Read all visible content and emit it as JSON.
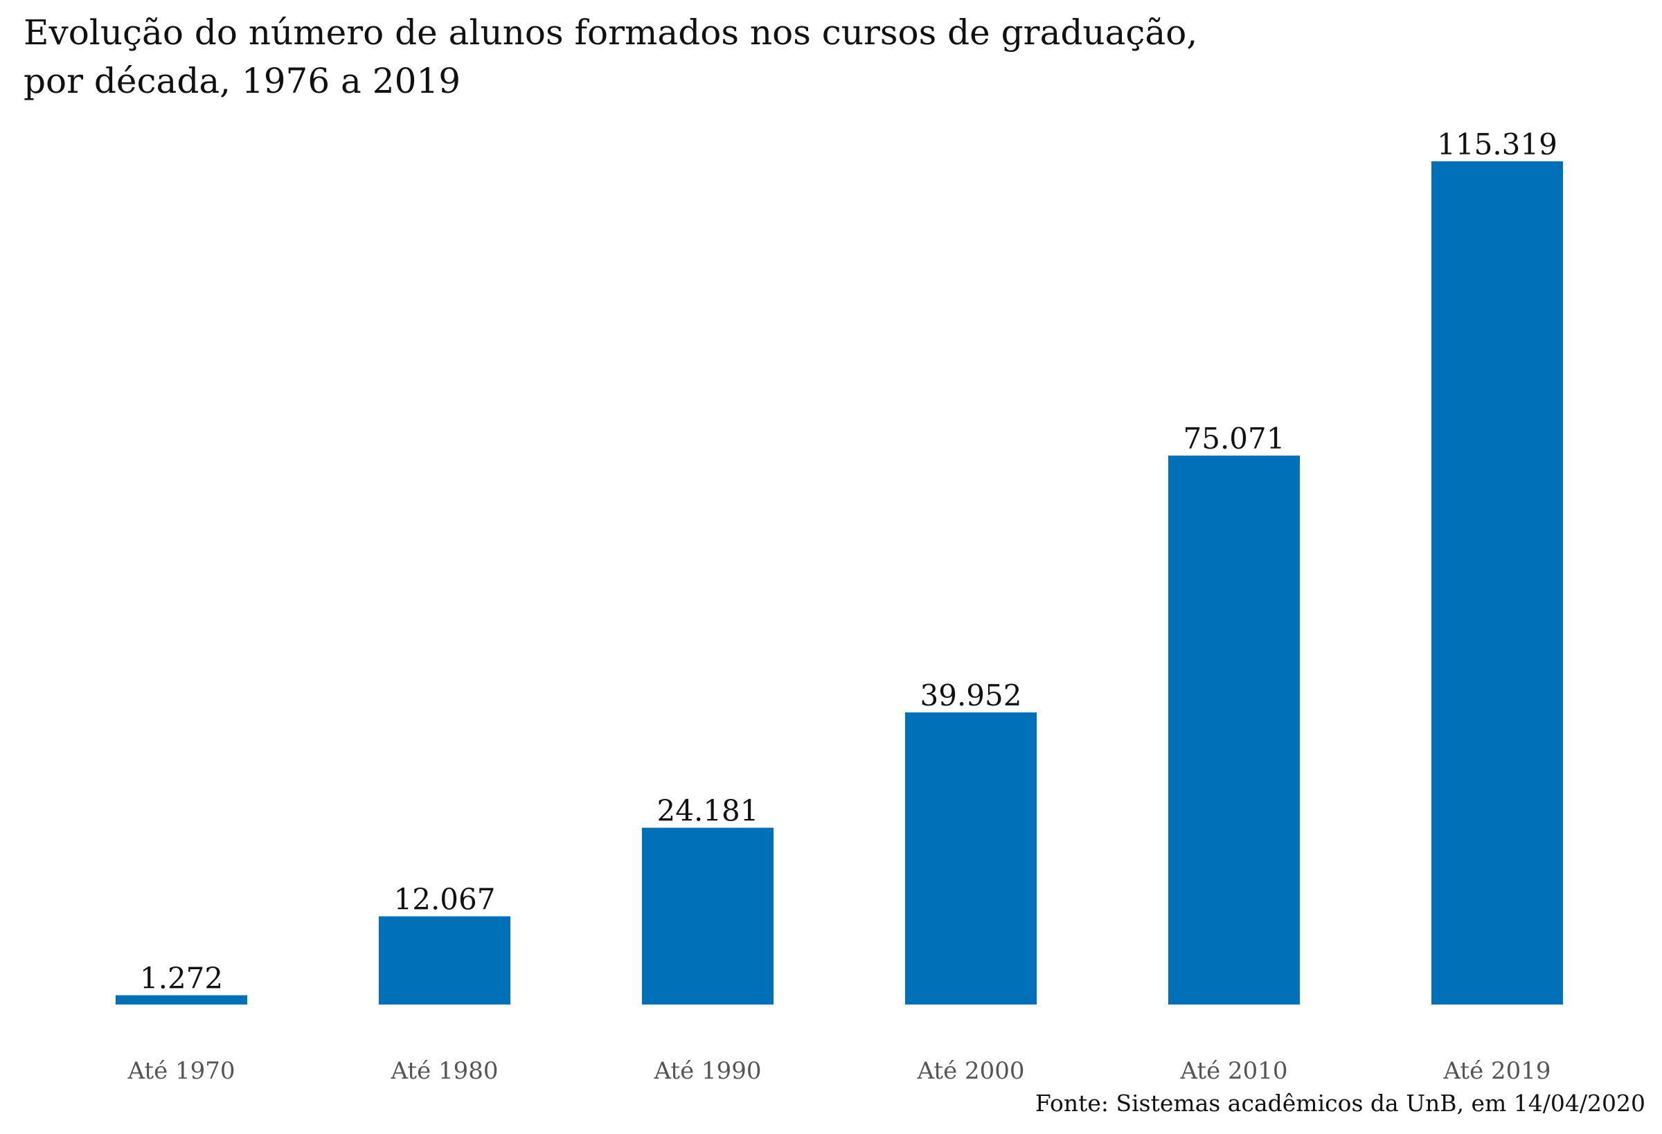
{
  "chart_data": {
    "type": "bar",
    "title": "Evolução do número de alunos formados nos cursos de graduação,\npor década, 1976 a 2019",
    "categories": [
      "Até 1970",
      "Até 1980",
      "Até 1990",
      "Até 2000",
      "Até 2010",
      "Até 2019"
    ],
    "values": [
      1272,
      12067,
      24181,
      39952,
      75071,
      115319
    ],
    "data_labels": [
      "1.272",
      "12.067",
      "24.181",
      "39.952",
      "75.071",
      "115.319"
    ],
    "xlabel": "",
    "ylabel": "",
    "ylim": [
      0,
      115319
    ],
    "grid": false,
    "legend": "none",
    "source": "Fonte: Sistemas acadêmicos da UnB, em 14/04/2020",
    "colors": {
      "bar": "#0070b8",
      "label_text": "#111111",
      "tick_text": "#555555"
    }
  }
}
